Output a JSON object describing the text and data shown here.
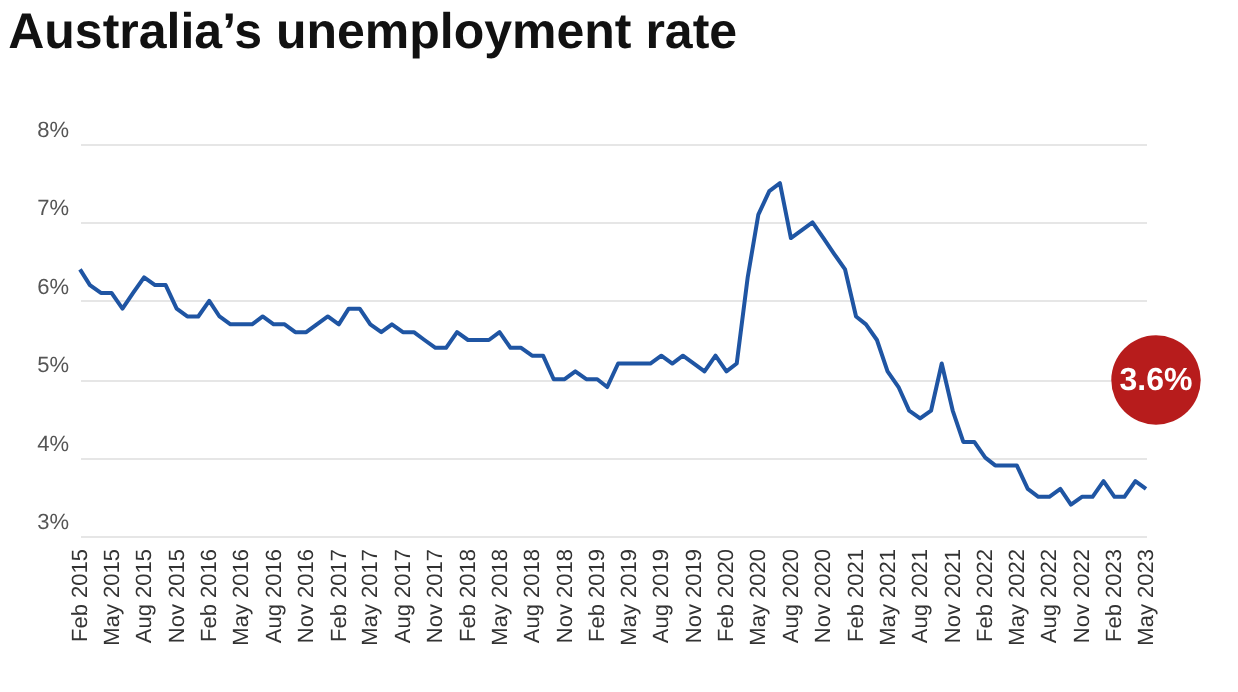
{
  "chart_data": {
    "type": "line",
    "title": "Australia’s unemployment rate",
    "x": [
      "2015-02",
      "2015-03",
      "2015-04",
      "2015-05",
      "2015-06",
      "2015-07",
      "2015-08",
      "2015-09",
      "2015-10",
      "2015-11",
      "2015-12",
      "2016-01",
      "2016-02",
      "2016-03",
      "2016-04",
      "2016-05",
      "2016-06",
      "2016-07",
      "2016-08",
      "2016-09",
      "2016-10",
      "2016-11",
      "2016-12",
      "2017-01",
      "2017-02",
      "2017-03",
      "2017-04",
      "2017-05",
      "2017-06",
      "2017-07",
      "2017-08",
      "2017-09",
      "2017-10",
      "2017-11",
      "2017-12",
      "2018-01",
      "2018-02",
      "2018-03",
      "2018-04",
      "2018-05",
      "2018-06",
      "2018-07",
      "2018-08",
      "2018-09",
      "2018-10",
      "2018-11",
      "2018-12",
      "2019-01",
      "2019-02",
      "2019-03",
      "2019-04",
      "2019-05",
      "2019-06",
      "2019-07",
      "2019-08",
      "2019-09",
      "2019-10",
      "2019-11",
      "2019-12",
      "2020-01",
      "2020-02",
      "2020-03",
      "2020-04",
      "2020-05",
      "2020-06",
      "2020-07",
      "2020-08",
      "2020-09",
      "2020-10",
      "2020-11",
      "2020-12",
      "2021-01",
      "2021-02",
      "2021-03",
      "2021-04",
      "2021-05",
      "2021-06",
      "2021-07",
      "2021-08",
      "2021-09",
      "2021-10",
      "2021-11",
      "2021-12",
      "2022-01",
      "2022-02",
      "2022-03",
      "2022-04",
      "2022-05",
      "2022-06",
      "2022-07",
      "2022-08",
      "2022-09",
      "2022-10",
      "2022-11",
      "2022-12",
      "2023-01",
      "2023-02",
      "2023-03",
      "2023-04",
      "2023-05"
    ],
    "series": [
      {
        "color": "#1f55a3",
        "values": [
          6.4,
          6.2,
          6.1,
          6.1,
          5.9,
          6.1,
          6.3,
          6.2,
          6.2,
          5.9,
          5.8,
          5.8,
          6.0,
          5.8,
          5.7,
          5.7,
          5.7,
          5.8,
          5.7,
          5.7,
          5.6,
          5.6,
          5.7,
          5.8,
          5.7,
          5.9,
          5.9,
          5.7,
          5.6,
          5.7,
          5.6,
          5.6,
          5.5,
          5.4,
          5.4,
          5.6,
          5.5,
          5.5,
          5.5,
          5.6,
          5.4,
          5.4,
          5.3,
          5.3,
          5.0,
          5.0,
          5.1,
          5.0,
          5.0,
          4.9,
          5.2,
          5.2,
          5.2,
          5.2,
          5.3,
          5.2,
          5.3,
          5.2,
          5.1,
          5.3,
          5.1,
          5.2,
          6.3,
          7.1,
          7.4,
          7.5,
          6.8,
          6.9,
          7.0,
          6.8,
          6.6,
          6.4,
          5.8,
          5.7,
          5.5,
          5.1,
          4.9,
          4.6,
          4.5,
          4.6,
          5.2,
          4.6,
          4.2,
          4.2,
          4.0,
          3.9,
          3.9,
          3.9,
          3.6,
          3.5,
          3.5,
          3.6,
          3.4,
          3.5,
          3.5,
          3.7,
          3.5,
          3.5,
          3.7,
          3.6
        ]
      }
    ],
    "xlim": [
      "2015-02",
      "2023-05"
    ],
    "xticks": [
      {
        "value": "2015-02",
        "label": "Feb 2015"
      },
      {
        "value": "2015-05",
        "label": "May 2015"
      },
      {
        "value": "2015-08",
        "label": "Aug 2015"
      },
      {
        "value": "2015-11",
        "label": "Nov 2015"
      },
      {
        "value": "2016-02",
        "label": "Feb 2016"
      },
      {
        "value": "2016-05",
        "label": "May 2016"
      },
      {
        "value": "2016-08",
        "label": "Aug 2016"
      },
      {
        "value": "2016-11",
        "label": "Nov 2016"
      },
      {
        "value": "2017-02",
        "label": "Feb 2017"
      },
      {
        "value": "2017-05",
        "label": "May 2017"
      },
      {
        "value": "2017-08",
        "label": "Aug 2017"
      },
      {
        "value": "2017-11",
        "label": "Nov 2017"
      },
      {
        "value": "2018-02",
        "label": "Feb 2018"
      },
      {
        "value": "2018-05",
        "label": "May 2018"
      },
      {
        "value": "2018-08",
        "label": "Aug 2018"
      },
      {
        "value": "2018-11",
        "label": "Nov 2018"
      },
      {
        "value": "2019-02",
        "label": "Feb 2019"
      },
      {
        "value": "2019-05",
        "label": "May 2019"
      },
      {
        "value": "2019-08",
        "label": "Aug 2019"
      },
      {
        "value": "2019-11",
        "label": "Nov 2019"
      },
      {
        "value": "2020-02",
        "label": "Feb 2020"
      },
      {
        "value": "2020-05",
        "label": "May 2020"
      },
      {
        "value": "2020-08",
        "label": "Aug 2020"
      },
      {
        "value": "2020-11",
        "label": "Nov 2020"
      },
      {
        "value": "2021-02",
        "label": "Feb 2021"
      },
      {
        "value": "2021-05",
        "label": "May 2021"
      },
      {
        "value": "2021-08",
        "label": "Aug 2021"
      },
      {
        "value": "2021-11",
        "label": "Nov 2021"
      },
      {
        "value": "2022-02",
        "label": "Feb 2022"
      },
      {
        "value": "2022-05",
        "label": "May 2022"
      },
      {
        "value": "2022-08",
        "label": "Aug 2022"
      },
      {
        "value": "2022-11",
        "label": "Nov 2022"
      },
      {
        "value": "2023-02",
        "label": "Feb 2023"
      },
      {
        "value": "2023-05",
        "label": "May 2023"
      }
    ],
    "ylim": [
      3,
      8
    ],
    "yticks": [
      {
        "value": 3,
        "label": "3%"
      },
      {
        "value": 4,
        "label": "4%"
      },
      {
        "value": 5,
        "label": "5%"
      },
      {
        "value": 6,
        "label": "6%"
      },
      {
        "value": 7,
        "label": "7%"
      },
      {
        "value": 8,
        "label": "8%"
      }
    ],
    "grid": "y",
    "marker": "none",
    "line_style": "solid",
    "annotations": [
      "3.6%"
    ]
  }
}
